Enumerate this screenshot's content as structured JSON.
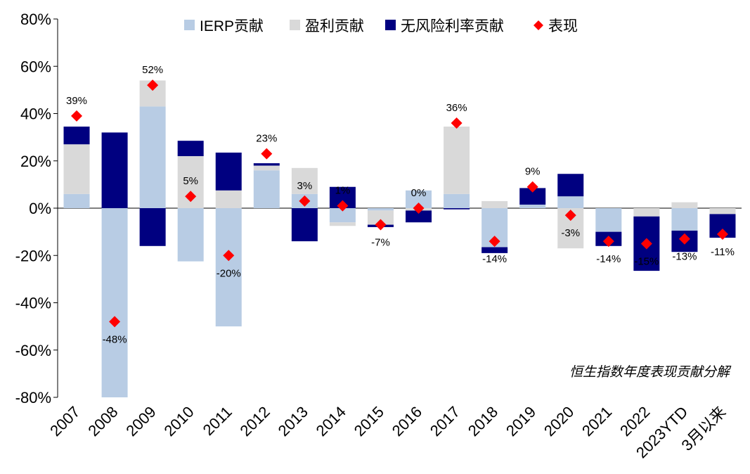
{
  "chart_data": {
    "type": "bar",
    "stacked": true,
    "title": "",
    "note": "恒生指数年度表现贡献分解",
    "ylim": [
      -80,
      80
    ],
    "yticks": [
      -80,
      -60,
      -40,
      -20,
      0,
      20,
      40,
      60,
      80
    ],
    "ytick_labels": [
      "-80%",
      "-60%",
      "-40%",
      "-20%",
      "0%",
      "20%",
      "40%",
      "60%",
      "80%"
    ],
    "categories": [
      "2007",
      "2008",
      "2009",
      "2010",
      "2011",
      "2012",
      "2013",
      "2014",
      "2015",
      "2016",
      "2017",
      "2018",
      "2019",
      "2020",
      "2021",
      "2022",
      "2023YTD",
      "3月以来"
    ],
    "legend_position": "top",
    "series": [
      {
        "name": "IERP贡献",
        "color": "#b8cce4",
        "values": [
          6,
          -80,
          43,
          -22.5,
          -50,
          16,
          6,
          -6,
          -1,
          7.5,
          6,
          -16.5,
          1.5,
          5,
          -10,
          0,
          -9.5,
          0
        ]
      },
      {
        "name": "盈利贡献",
        "color": "#d9d9d9",
        "values": [
          21,
          0,
          11,
          22,
          7.5,
          2,
          11,
          -1.5,
          -6,
          -1,
          28.5,
          3,
          0,
          -17,
          0,
          -3.5,
          2.5,
          -2.5
        ]
      },
      {
        "name": "无风险利率贡献",
        "color": "#000080",
        "values": [
          7.5,
          32,
          -16,
          6.5,
          16,
          1,
          -14,
          9,
          -1,
          -5,
          -0.5,
          -2.5,
          7,
          9.5,
          -6,
          -23,
          -9,
          -10
        ]
      },
      {
        "name": "表现",
        "type": "scatter",
        "color": "#ff0000",
        "values": [
          39,
          -48,
          52,
          5,
          -20,
          23,
          3,
          1,
          -7,
          0,
          36,
          -14,
          9,
          -3,
          -14,
          -15,
          -13,
          -11
        ],
        "labels": [
          "39%",
          "-48%",
          "52%",
          "5%",
          "-20%",
          "23%",
          "3%",
          "1%",
          "-7%",
          "0%",
          "36%",
          "-14%",
          "9%",
          "-3%",
          "-14%",
          "-15%",
          "-13%",
          "-11%"
        ]
      }
    ]
  }
}
